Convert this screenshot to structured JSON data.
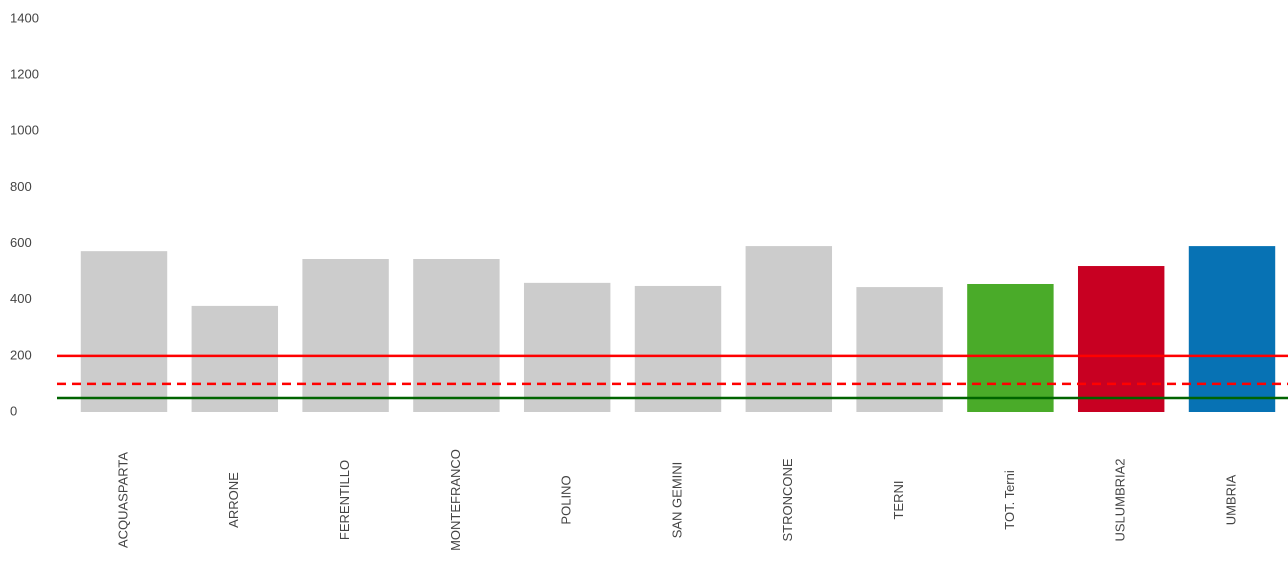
{
  "chart_data": {
    "type": "bar",
    "categories": [
      "ACQUASPARTA",
      "ARRONE",
      "FERENTILLO",
      "MONTEFRANCO",
      "POLINO",
      "SAN GEMINI",
      "STRONCONE",
      "TERNI",
      "TOT. Terni",
      "USLUMBRIA2",
      "UMBRIA"
    ],
    "values": [
      573,
      378,
      545,
      545,
      460,
      449,
      591,
      445,
      456,
      520,
      591
    ],
    "colors": [
      "#cccccc",
      "#cccccc",
      "#cccccc",
      "#cccccc",
      "#cccccc",
      "#cccccc",
      "#cccccc",
      "#cccccc",
      "#4aab29",
      "#c80022",
      "#0772b4"
    ],
    "ylim": [
      0,
      1400
    ],
    "yticks": [
      0,
      200,
      400,
      600,
      800,
      1000,
      1200,
      1400
    ],
    "grid": false,
    "reference_lines": [
      {
        "value": 200,
        "color": "#ff0000",
        "dashed": false
      },
      {
        "value": 100,
        "color": "#ff0000",
        "dashed": true
      },
      {
        "value": 50,
        "color": "#006400",
        "dashed": false
      }
    ]
  }
}
